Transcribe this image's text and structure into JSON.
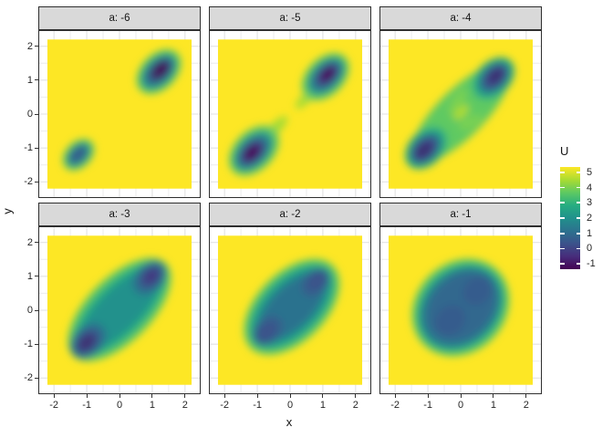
{
  "chart_data": {
    "type": "heatmap",
    "title": "",
    "facet_var": "a",
    "x": {
      "label": "x",
      "ticks": [
        -2,
        -1,
        0,
        1,
        2
      ],
      "minor": [
        -1.5,
        -0.5,
        0.5,
        1.5
      ],
      "lim": [
        -2.45,
        2.45
      ]
    },
    "y": {
      "label": "y",
      "ticks": [
        2,
        1,
        0,
        -1,
        -2
      ],
      "minor": [
        1.5,
        0.5,
        -0.5,
        -1.5
      ],
      "lim": [
        -2.45,
        2.45
      ]
    },
    "raster_extent": 2.2,
    "grid": true,
    "colors": {
      "raster_background": "#FDE725",
      "panel_border": "#2f2f2f",
      "strip_background": "#d9d9d9",
      "grid_major": "#e2e2e2",
      "grid_minor": "#eeeeee",
      "tick": "#333333"
    },
    "legend": {
      "title": "U",
      "position": "right",
      "ticks": [
        5,
        4,
        3,
        2,
        1,
        0,
        -1
      ],
      "lim": [
        -1.35,
        5.35
      ],
      "colormap": "viridis",
      "stops": [
        "#fde725",
        "#aadc32",
        "#5ec962",
        "#27ad81",
        "#21918c",
        "#2c728e",
        "#3b528b",
        "#472d7b",
        "#440154"
      ]
    },
    "facets": [
      {
        "label": "a: -6",
        "a": -6,
        "blobs": [
          {
            "cx": 1.2,
            "cy": 1.25,
            "rx": 0.8,
            "ry": 0.52,
            "rot": -45,
            "fill": "#5ec962"
          },
          {
            "cx": 1.2,
            "cy": 1.25,
            "rx": 0.65,
            "ry": 0.4,
            "rot": -45,
            "fill": "#21918c"
          },
          {
            "cx": 1.22,
            "cy": 1.27,
            "rx": 0.51,
            "ry": 0.3,
            "rot": -45,
            "fill": "#31688e"
          },
          {
            "cx": 1.24,
            "cy": 1.29,
            "rx": 0.37,
            "ry": 0.21,
            "rot": -45,
            "fill": "#3e356b"
          },
          {
            "cx": 1.27,
            "cy": 1.31,
            "rx": 0.23,
            "ry": 0.13,
            "rot": -45,
            "fill": "#440154"
          },
          {
            "cx": -1.25,
            "cy": -1.2,
            "rx": 0.56,
            "ry": 0.38,
            "rot": -45,
            "fill": "#5ec962"
          },
          {
            "cx": -1.25,
            "cy": -1.2,
            "rx": 0.43,
            "ry": 0.27,
            "rot": -45,
            "fill": "#26828e"
          },
          {
            "cx": -1.26,
            "cy": -1.19,
            "rx": 0.29,
            "ry": 0.17,
            "rot": -45,
            "fill": "#35608d"
          }
        ]
      },
      {
        "label": "a: -5",
        "a": -5,
        "blobs": [
          {
            "cx": 0.5,
            "cy": 0.48,
            "rx": 0.45,
            "ry": 0.15,
            "rot": -45,
            "fill": "#a5db36"
          },
          {
            "cx": -0.45,
            "cy": -0.42,
            "rx": 0.5,
            "ry": 0.17,
            "rot": -45,
            "fill": "#a5db36"
          },
          {
            "cx": 1.08,
            "cy": 1.1,
            "rx": 0.85,
            "ry": 0.55,
            "rot": -45,
            "fill": "#5ec962"
          },
          {
            "cx": 1.1,
            "cy": 1.12,
            "rx": 0.68,
            "ry": 0.42,
            "rot": -45,
            "fill": "#21918c"
          },
          {
            "cx": 1.12,
            "cy": 1.14,
            "rx": 0.52,
            "ry": 0.31,
            "rot": -45,
            "fill": "#31688e"
          },
          {
            "cx": 1.14,
            "cy": 1.16,
            "rx": 0.37,
            "ry": 0.21,
            "rot": -45,
            "fill": "#46327e"
          },
          {
            "cx": 1.15,
            "cy": 1.17,
            "rx": 0.23,
            "ry": 0.12,
            "rot": -45,
            "fill": "#440154"
          },
          {
            "cx": -1.1,
            "cy": -1.08,
            "rx": 0.9,
            "ry": 0.58,
            "rot": -45,
            "fill": "#5ec962"
          },
          {
            "cx": -1.12,
            "cy": -1.1,
            "rx": 0.72,
            "ry": 0.44,
            "rot": -45,
            "fill": "#21918c"
          },
          {
            "cx": -1.14,
            "cy": -1.12,
            "rx": 0.55,
            "ry": 0.33,
            "rot": -45,
            "fill": "#31688e"
          },
          {
            "cx": -1.15,
            "cy": -1.13,
            "rx": 0.4,
            "ry": 0.23,
            "rot": -45,
            "fill": "#46327e"
          },
          {
            "cx": -1.16,
            "cy": -1.14,
            "rx": 0.25,
            "ry": 0.14,
            "rot": -45,
            "fill": "#440154"
          }
        ]
      },
      {
        "label": "a: -4",
        "a": -4,
        "blobs": [
          {
            "cx": 0,
            "cy": 0.02,
            "rx": 2.0,
            "ry": 0.7,
            "rot": -45,
            "fill": "#5ec962"
          },
          {
            "cx": -0.1,
            "cy": 0.35,
            "rx": 0.45,
            "ry": 0.16,
            "rot": -58,
            "fill": "#7ad151"
          },
          {
            "cx": 0.3,
            "cy": -0.25,
            "rx": 0.4,
            "ry": 0.15,
            "rot": -30,
            "fill": "#7ad151"
          },
          {
            "cx": 1.0,
            "cy": 1.05,
            "rx": 0.75,
            "ry": 0.5,
            "rot": -45,
            "fill": "#27ad81"
          },
          {
            "cx": -1.05,
            "cy": -1.0,
            "rx": 0.75,
            "ry": 0.5,
            "rot": -45,
            "fill": "#27ad81"
          },
          {
            "cx": 1.02,
            "cy": 1.07,
            "rx": 0.57,
            "ry": 0.37,
            "rot": -45,
            "fill": "#2c728e"
          },
          {
            "cx": -1.07,
            "cy": -1.02,
            "rx": 0.57,
            "ry": 0.37,
            "rot": -45,
            "fill": "#2c728e"
          },
          {
            "cx": 1.05,
            "cy": 1.1,
            "rx": 0.4,
            "ry": 0.25,
            "rot": -45,
            "fill": "#414487"
          },
          {
            "cx": -1.1,
            "cy": -1.05,
            "rx": 0.42,
            "ry": 0.26,
            "rot": -45,
            "fill": "#414487"
          },
          {
            "cx": 1.07,
            "cy": 1.12,
            "rx": 0.24,
            "ry": 0.14,
            "rot": -45,
            "fill": "#3a2f6f"
          },
          {
            "cx": -1.12,
            "cy": -1.07,
            "rx": 0.26,
            "ry": 0.15,
            "rot": -45,
            "fill": "#3a2f6f"
          },
          {
            "cx": 0.02,
            "cy": 0.05,
            "rx": 0.3,
            "ry": 0.14,
            "rot": -45,
            "fill": "#c8e020",
            "opacity": 0.75
          }
        ]
      },
      {
        "label": "a: -3",
        "a": -3,
        "blobs": [
          {
            "cx": 0,
            "cy": 0.02,
            "rx": 2.0,
            "ry": 0.95,
            "rot": -45,
            "fill": "#5ec962"
          },
          {
            "cx": 0,
            "cy": 0.02,
            "rx": 1.85,
            "ry": 0.78,
            "rot": -45,
            "fill": "#27ad81"
          },
          {
            "cx": 0,
            "cy": 0.02,
            "rx": 1.65,
            "ry": 0.6,
            "rot": -45,
            "fill": "#21918c"
          },
          {
            "cx": 0.92,
            "cy": 0.95,
            "rx": 0.6,
            "ry": 0.42,
            "rot": -45,
            "fill": "#2c728e"
          },
          {
            "cx": -0.95,
            "cy": -0.9,
            "rx": 0.62,
            "ry": 0.44,
            "rot": -45,
            "fill": "#2c728e"
          },
          {
            "cx": 0.95,
            "cy": 0.98,
            "rx": 0.42,
            "ry": 0.28,
            "rot": -45,
            "fill": "#3b528b"
          },
          {
            "cx": -0.98,
            "cy": -0.93,
            "rx": 0.45,
            "ry": 0.3,
            "rot": -45,
            "fill": "#3b528b"
          },
          {
            "cx": 0.97,
            "cy": 1.0,
            "rx": 0.25,
            "ry": 0.16,
            "rot": -45,
            "fill": "#433880"
          },
          {
            "cx": -1.0,
            "cy": -0.95,
            "rx": 0.29,
            "ry": 0.18,
            "rot": -45,
            "fill": "#3c3173"
          }
        ]
      },
      {
        "label": "a: -2",
        "a": -2,
        "blobs": [
          {
            "cx": 0.05,
            "cy": 0.1,
            "rx": 1.78,
            "ry": 1.02,
            "rot": -45,
            "fill": "#5ec962"
          },
          {
            "cx": 0.05,
            "cy": 0.1,
            "rx": 1.63,
            "ry": 0.88,
            "rot": -45,
            "fill": "#27ad81"
          },
          {
            "cx": 0.05,
            "cy": 0.1,
            "rx": 1.48,
            "ry": 0.74,
            "rot": -45,
            "fill": "#21918c"
          },
          {
            "cx": 0.05,
            "cy": 0.1,
            "rx": 1.28,
            "ry": 0.6,
            "rot": -45,
            "fill": "#2c728e"
          },
          {
            "cx": 0.78,
            "cy": 0.82,
            "rx": 0.5,
            "ry": 0.34,
            "rot": -45,
            "fill": "#355f8d"
          },
          {
            "cx": -0.68,
            "cy": -0.6,
            "rx": 0.52,
            "ry": 0.36,
            "rot": -45,
            "fill": "#355f8d"
          },
          {
            "cx": 0.8,
            "cy": 0.85,
            "rx": 0.3,
            "ry": 0.2,
            "rot": -45,
            "fill": "#3b528b"
          },
          {
            "cx": -0.7,
            "cy": -0.62,
            "rx": 0.32,
            "ry": 0.21,
            "rot": -45,
            "fill": "#3b528b"
          }
        ]
      },
      {
        "label": "a: -1",
        "a": -1,
        "blobs": [
          {
            "cx": 0,
            "cy": 0.08,
            "rx": 1.6,
            "ry": 1.32,
            "rot": -45,
            "fill": "#5ec962"
          },
          {
            "cx": 0,
            "cy": 0.08,
            "rx": 1.48,
            "ry": 1.18,
            "rot": -45,
            "fill": "#27ad81"
          },
          {
            "cx": 0,
            "cy": 0.08,
            "rx": 1.36,
            "ry": 1.04,
            "rot": -45,
            "fill": "#2a788e"
          },
          {
            "cx": 0.02,
            "cy": 0.1,
            "rx": 1.15,
            "ry": 0.85,
            "rot": -45,
            "fill": "#31688e"
          },
          {
            "cx": -0.32,
            "cy": -0.3,
            "rx": 0.5,
            "ry": 0.4,
            "rot": -45,
            "fill": "#365c8d"
          },
          {
            "cx": 0.52,
            "cy": 0.58,
            "rx": 0.48,
            "ry": 0.38,
            "rot": -45,
            "fill": "#365c8d"
          }
        ]
      }
    ]
  }
}
